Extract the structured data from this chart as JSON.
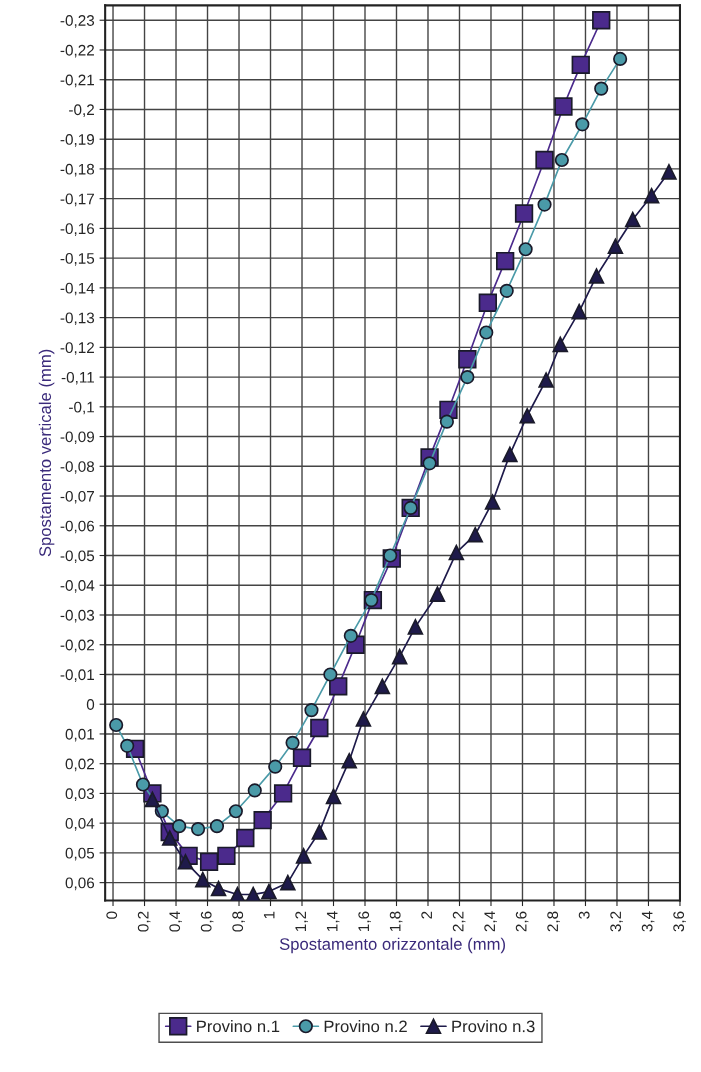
{
  "chart_data": {
    "type": "line",
    "xlabel": "Spostamento orizzontale (mm)",
    "ylabel": "Spostamento verticale (mm)",
    "xlim": [
      -0.05,
      3.6
    ],
    "ylim": [
      0.066,
      -0.235
    ],
    "xticks": [
      0,
      {
        "value": 0.2,
        "label": "0,2"
      },
      {
        "value": 0.4,
        "label": "0,4"
      },
      {
        "value": 0.6,
        "label": "0,6"
      },
      {
        "value": 0.8,
        "label": "0,8"
      },
      1,
      {
        "value": 1.2,
        "label": "1,2"
      },
      {
        "value": 1.4,
        "label": "1,4"
      },
      {
        "value": 1.6,
        "label": "1,6"
      },
      {
        "value": 1.8,
        "label": "1,8"
      },
      2,
      {
        "value": 2.2,
        "label": "2,2"
      },
      {
        "value": 2.4,
        "label": "2,4"
      },
      {
        "value": 2.6,
        "label": "2,6"
      },
      {
        "value": 2.8,
        "label": "2,8"
      },
      3,
      {
        "value": 3.2,
        "label": "3,2"
      },
      {
        "value": 3.4,
        "label": "3,4"
      },
      {
        "value": 3.6,
        "label": "3,6"
      }
    ],
    "yticks": [
      {
        "value": -0.23,
        "label": "-0,23"
      },
      {
        "value": -0.22,
        "label": "-0,22"
      },
      {
        "value": -0.21,
        "label": "-0,21"
      },
      {
        "value": -0.2,
        "label": "-0,2"
      },
      {
        "value": -0.19,
        "label": "-0,19"
      },
      {
        "value": -0.18,
        "label": "-0,18"
      },
      {
        "value": -0.17,
        "label": "-0,17"
      },
      {
        "value": -0.16,
        "label": "-0,16"
      },
      {
        "value": -0.15,
        "label": "-0,15"
      },
      {
        "value": -0.14,
        "label": "-0,14"
      },
      {
        "value": -0.13,
        "label": "-0,13"
      },
      {
        "value": -0.12,
        "label": "-0,12"
      },
      {
        "value": -0.11,
        "label": "-0,11"
      },
      {
        "value": -0.1,
        "label": "-0,1"
      },
      {
        "value": -0.09,
        "label": "-0,09"
      },
      {
        "value": -0.08,
        "label": "-0,08"
      },
      {
        "value": -0.07,
        "label": "-0,07"
      },
      {
        "value": -0.06,
        "label": "-0,06"
      },
      {
        "value": -0.05,
        "label": "-0,05"
      },
      {
        "value": -0.04,
        "label": "-0,04"
      },
      {
        "value": -0.03,
        "label": "-0,03"
      },
      {
        "value": -0.02,
        "label": "-0,02"
      },
      {
        "value": -0.01,
        "label": "-0,01"
      },
      0,
      {
        "value": 0.01,
        "label": "0,01"
      },
      {
        "value": 0.02,
        "label": "0,02"
      },
      {
        "value": 0.03,
        "label": "0,03"
      },
      {
        "value": 0.04,
        "label": "0,04"
      },
      {
        "value": 0.05,
        "label": "0,05"
      },
      {
        "value": 0.06,
        "label": "0,06"
      }
    ],
    "grid": true,
    "legend": "bottom",
    "series": [
      {
        "name": "Provino n.1",
        "color": "#4b2a8c",
        "marker": "square",
        "x": [
          0.14,
          0.25,
          0.36,
          0.48,
          0.61,
          0.72,
          0.84,
          0.95,
          1.08,
          1.2,
          1.31,
          1.43,
          1.54,
          1.65,
          1.77,
          1.89,
          2.01,
          2.13,
          2.25,
          2.38,
          2.49,
          2.61,
          2.74,
          2.86,
          2.97,
          3.1
        ],
        "values": [
          0.015,
          0.03,
          0.043,
          0.051,
          0.053,
          0.051,
          0.045,
          0.039,
          0.03,
          0.018,
          0.008,
          -0.006,
          -0.02,
          -0.035,
          -0.049,
          -0.066,
          -0.083,
          -0.099,
          -0.116,
          -0.135,
          -0.149,
          -0.165,
          -0.183,
          -0.201,
          -0.215,
          -0.23
        ]
      },
      {
        "name": "Provino n.2",
        "color": "#4a9aa8",
        "marker": "circle",
        "x": [
          0.02,
          0.09,
          0.19,
          0.31,
          0.42,
          0.54,
          0.66,
          0.78,
          0.9,
          1.03,
          1.14,
          1.26,
          1.38,
          1.51,
          1.64,
          1.76,
          1.89,
          2.01,
          2.12,
          2.25,
          2.37,
          2.5,
          2.62,
          2.74,
          2.85,
          2.98,
          3.1,
          3.22
        ],
        "values": [
          0.007,
          0.014,
          0.027,
          0.036,
          0.041,
          0.042,
          0.041,
          0.036,
          0.029,
          0.021,
          0.013,
          0.002,
          -0.01,
          -0.023,
          -0.035,
          -0.05,
          -0.066,
          -0.081,
          -0.095,
          -0.11,
          -0.125,
          -0.139,
          -0.153,
          -0.168,
          -0.183,
          -0.195,
          -0.207,
          -0.217
        ]
      },
      {
        "name": "Provino n.3",
        "color": "#1e1a4a",
        "marker": "triangle",
        "x": [
          0.25,
          0.36,
          0.46,
          0.57,
          0.67,
          0.79,
          0.89,
          0.99,
          1.11,
          1.21,
          1.31,
          1.4,
          1.5,
          1.59,
          1.71,
          1.82,
          1.92,
          2.06,
          2.18,
          2.3,
          2.41,
          2.52,
          2.63,
          2.75,
          2.84,
          2.96,
          3.07,
          3.19,
          3.3,
          3.42,
          3.53
        ],
        "values": [
          0.032,
          0.045,
          0.053,
          0.059,
          0.062,
          0.064,
          0.064,
          0.063,
          0.06,
          0.051,
          0.043,
          0.031,
          0.019,
          0.005,
          -0.006,
          -0.016,
          -0.026,
          -0.037,
          -0.051,
          -0.057,
          -0.068,
          -0.084,
          -0.097,
          -0.109,
          -0.121,
          -0.132,
          -0.144,
          -0.154,
          -0.163,
          -0.171,
          -0.179
        ]
      }
    ]
  }
}
